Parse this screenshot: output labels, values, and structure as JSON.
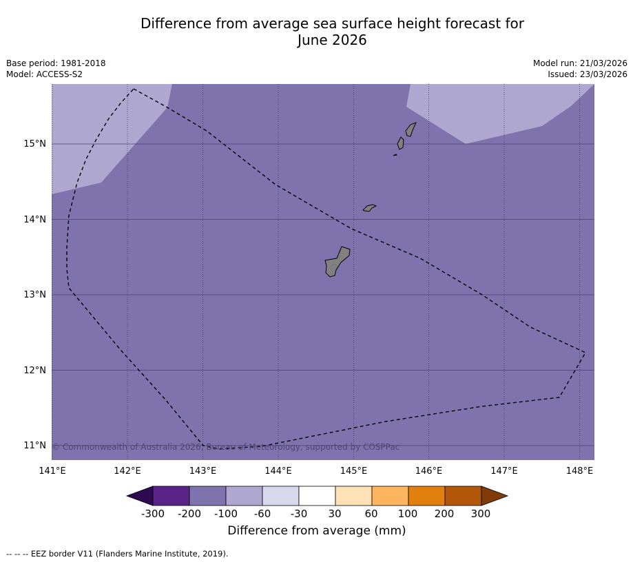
{
  "title": {
    "line1": "Difference from average sea surface height forecast for",
    "line2": "June 2026"
  },
  "meta": {
    "base_period": "Base period: 1981-2018",
    "model": "Model: ACCESS-S2",
    "model_run": "Model run: 21/03/2026",
    "issued": "Issued: 23/03/2026"
  },
  "map": {
    "lat_labels": [
      "15°N",
      "14°N",
      "13°N",
      "12°N",
      "11°N"
    ],
    "lon_labels": [
      "141°E",
      "142°E",
      "143°E",
      "144°E",
      "145°E",
      "146°E",
      "147°E",
      "148°E"
    ],
    "copyright": "© Commonwealth of Australia 2026, Bureau of Meteorology, supported by COSPPac",
    "colors": {
      "ocean_main": "#7f73ad",
      "ocean_light": "#aea7cf",
      "land": "#808080"
    }
  },
  "colorbar": {
    "ticks": [
      "-300",
      "-200",
      "-100",
      "-60",
      "-30",
      "30",
      "60",
      "100",
      "200",
      "300"
    ],
    "colors": [
      "#2d0a52",
      "#5b2489",
      "#7f73ad",
      "#aea7cf",
      "#d9d8ec",
      "#ffffff",
      "#fee1b5",
      "#fbb55e",
      "#e2800f",
      "#b3580a",
      "#7f3b08"
    ],
    "label": "Difference from average (mm)"
  },
  "footnote": "--  --  -- EEZ border V11 (Flanders Marine Institute, 2019)."
}
